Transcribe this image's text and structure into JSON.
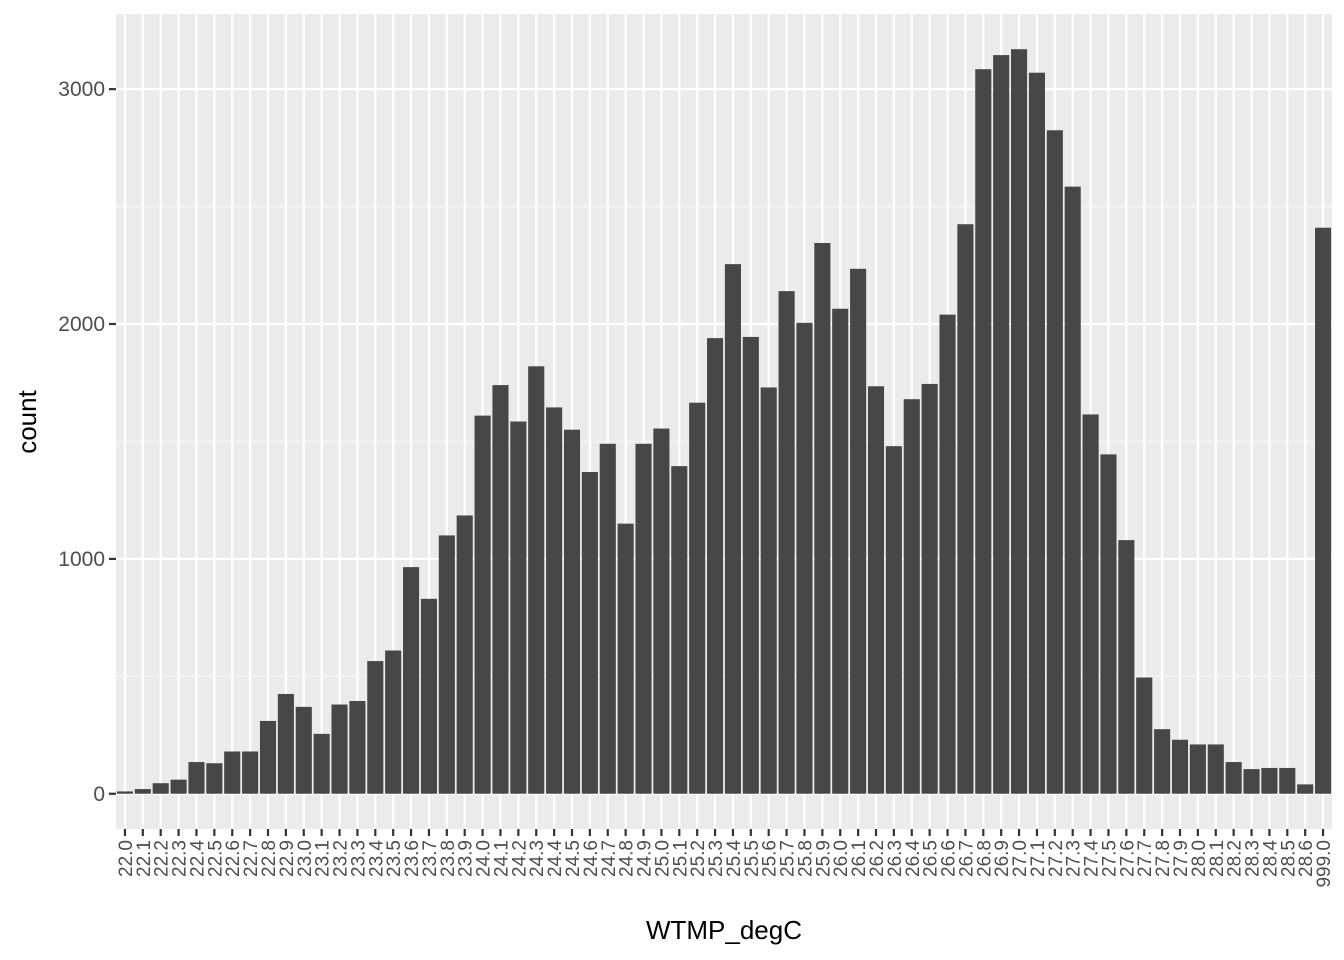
{
  "chart_data": {
    "type": "bar",
    "xlabel": "WTMP_degC",
    "ylabel": "count",
    "ylim": [
      -150,
      3320
    ],
    "yticks": [
      0,
      1000,
      2000,
      3000
    ],
    "grid": true,
    "categories": [
      "22.0",
      "22.1",
      "22.2",
      "22.3",
      "22.4",
      "22.5",
      "22.6",
      "22.7",
      "22.8",
      "22.9",
      "23.0",
      "23.1",
      "23.2",
      "23.3",
      "23.4",
      "23.5",
      "23.6",
      "23.7",
      "23.8",
      "23.9",
      "24.0",
      "24.1",
      "24.2",
      "24.3",
      "24.4",
      "24.5",
      "24.6",
      "24.7",
      "24.8",
      "24.9",
      "25.0",
      "25.1",
      "25.2",
      "25.3",
      "25.4",
      "25.5",
      "25.6",
      "25.7",
      "25.8",
      "25.9",
      "26.0",
      "26.1",
      "26.2",
      "26.3",
      "26.4",
      "26.5",
      "26.6",
      "26.7",
      "26.8",
      "26.9",
      "27.0",
      "27.1",
      "27.2",
      "27.3",
      "27.4",
      "27.5",
      "27.6",
      "27.7",
      "27.8",
      "27.9",
      "28.0",
      "28.1",
      "28.2",
      "28.3",
      "28.4",
      "28.5",
      "28.6",
      "999.0"
    ],
    "tick_labels": [
      "22.0",
      "22.1",
      "22.2",
      "22.3",
      "22.4",
      "22.5",
      "22.6",
      "22.7",
      "22.8",
      "22.9",
      "23.0",
      "23.1",
      "23.2",
      "23.3",
      "23.4",
      "23.5",
      "23.6",
      "23.7",
      "23.8",
      "23.9",
      "24.0",
      "24.1",
      "24.2",
      "24.3",
      "24.4",
      "24.5",
      "24.6",
      "24.7",
      "24.8",
      "24.9",
      "25.0",
      "25.1",
      "25.2",
      "25.3",
      "25.4",
      "25.5",
      "25.6",
      "25.7",
      "25.8",
      "25.9",
      "26.0",
      "26.1",
      "26.2",
      "26.3",
      "26.4",
      "26.5",
      "26.6",
      "26.7",
      "26.8",
      "26.9",
      "27.0",
      "27.1",
      "27.2",
      "27.3",
      "27.4",
      "27.5",
      "27.6",
      "27.7",
      "27.8",
      "27.9",
      "28.0",
      "28.1",
      "28.2",
      "28.3",
      "28.4",
      "28.5",
      "28.6",
      "999.0"
    ],
    "values": [
      10,
      20,
      45,
      60,
      135,
      130,
      180,
      180,
      310,
      425,
      370,
      255,
      380,
      395,
      565,
      610,
      965,
      830,
      1100,
      1185,
      1610,
      1740,
      1585,
      1820,
      1645,
      1550,
      1370,
      1490,
      1150,
      1490,
      1555,
      1395,
      1665,
      1940,
      2255,
      1945,
      1730,
      2140,
      2005,
      2345,
      2065,
      2235,
      1735,
      1480,
      1680,
      1745,
      2040,
      2425,
      3085,
      3145,
      3170,
      3070,
      2825,
      2585,
      1615,
      1445,
      1080,
      495,
      275,
      230,
      210,
      210,
      135,
      105,
      110,
      110,
      40,
      2410
    ],
    "colors": {
      "bar": "#474747",
      "panel": "#ebebeb",
      "grid_major": "#ffffff",
      "grid_minor": "#f5f5f5",
      "tick": "#333333"
    }
  }
}
